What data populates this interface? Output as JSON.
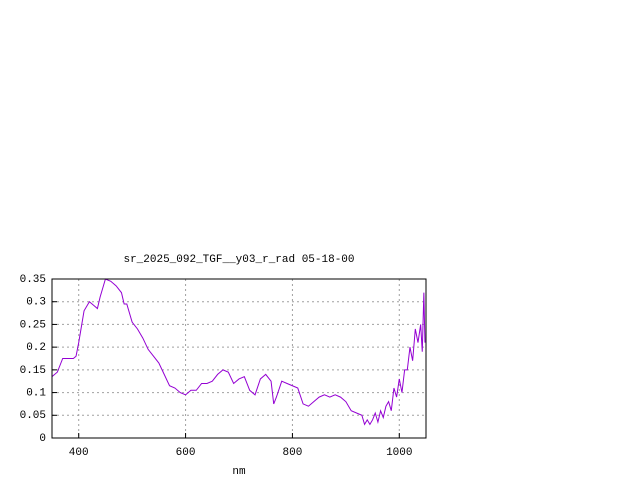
{
  "chart_data": {
    "type": "line",
    "title": "sr_2025_092_TGF__y03_r_rad 05-18-00",
    "xlabel": "nm",
    "color": "#9400d3",
    "grid": true,
    "xlim": [
      350,
      1050
    ],
    "ylim": [
      0,
      0.35
    ],
    "xticks": [
      400,
      600,
      800,
      1000
    ],
    "yticks": [
      0,
      0.05,
      0.1,
      0.15,
      0.2,
      0.25,
      0.3,
      0.35
    ],
    "x": [
      350,
      360,
      370,
      380,
      390,
      395,
      400,
      410,
      420,
      430,
      435,
      440,
      450,
      460,
      470,
      480,
      485,
      490,
      500,
      510,
      520,
      530,
      540,
      550,
      560,
      570,
      580,
      590,
      600,
      610,
      620,
      630,
      640,
      650,
      660,
      670,
      680,
      690,
      700,
      710,
      720,
      730,
      740,
      750,
      760,
      765,
      770,
      780,
      790,
      800,
      810,
      820,
      830,
      840,
      850,
      860,
      870,
      880,
      890,
      900,
      910,
      920,
      930,
      935,
      940,
      945,
      950,
      955,
      960,
      965,
      970,
      975,
      980,
      985,
      990,
      995,
      1000,
      1005,
      1010,
      1015,
      1020,
      1025,
      1030,
      1035,
      1040,
      1043,
      1046,
      1048
    ],
    "values": [
      0.135,
      0.145,
      0.175,
      0.175,
      0.175,
      0.18,
      0.21,
      0.28,
      0.3,
      0.29,
      0.285,
      0.31,
      0.35,
      0.345,
      0.335,
      0.32,
      0.295,
      0.295,
      0.255,
      0.24,
      0.22,
      0.195,
      0.18,
      0.165,
      0.14,
      0.115,
      0.11,
      0.1,
      0.095,
      0.105,
      0.105,
      0.12,
      0.12,
      0.125,
      0.14,
      0.15,
      0.145,
      0.12,
      0.13,
      0.135,
      0.105,
      0.095,
      0.13,
      0.14,
      0.125,
      0.075,
      0.09,
      0.125,
      0.12,
      0.115,
      0.11,
      0.075,
      0.07,
      0.08,
      0.09,
      0.095,
      0.09,
      0.095,
      0.09,
      0.08,
      0.06,
      0.055,
      0.05,
      0.03,
      0.04,
      0.03,
      0.04,
      0.055,
      0.035,
      0.06,
      0.045,
      0.07,
      0.08,
      0.06,
      0.11,
      0.09,
      0.13,
      0.1,
      0.15,
      0.15,
      0.2,
      0.17,
      0.24,
      0.21,
      0.25,
      0.19,
      0.32,
      0.21
    ]
  }
}
